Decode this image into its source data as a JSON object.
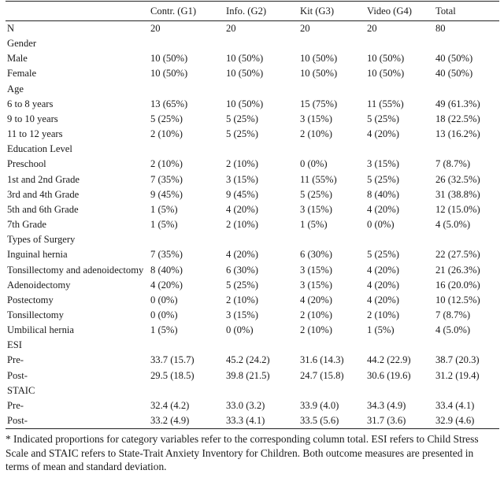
{
  "header": [
    "",
    "Contr. (G1)",
    "Info. (G2)",
    "Kit (G3)",
    "Video (G4)",
    "Total"
  ],
  "rows": [
    [
      "N",
      "20",
      "20",
      "20",
      "20",
      "80"
    ],
    [
      "Gender",
      "",
      "",
      "",
      "",
      ""
    ],
    [
      "Male",
      "10 (50%)",
      "10 (50%)",
      "10 (50%)",
      "10 (50%)",
      "40 (50%)"
    ],
    [
      "Female",
      "10 (50%)",
      "10 (50%)",
      "10 (50%)",
      "10 (50%)",
      "40 (50%)"
    ],
    [
      "Age",
      "",
      "",
      "",
      "",
      ""
    ],
    [
      "6 to 8 years",
      "13 (65%)",
      "10 (50%)",
      "15 (75%)",
      "11 (55%)",
      "49 (61.3%)"
    ],
    [
      "9 to 10 years",
      "5 (25%)",
      "5 (25%)",
      "3 (15%)",
      "5 (25%)",
      "18 (22.5%)"
    ],
    [
      "11 to 12 years",
      "2 (10%)",
      "5 (25%)",
      "2 (10%)",
      "4 (20%)",
      "13 (16.2%)"
    ],
    [
      "Education Level",
      "",
      "",
      "",
      "",
      ""
    ],
    [
      "Preschool",
      "2 (10%)",
      "2 (10%)",
      "0 (0%)",
      "3 (15%)",
      "7 (8.7%)"
    ],
    [
      "1st and 2nd Grade",
      "7 (35%)",
      "3 (15%)",
      "11 (55%)",
      "5 (25%)",
      "26 (32.5%)"
    ],
    [
      "3rd and 4th Grade",
      "9 (45%)",
      "9 (45%)",
      "5 (25%)",
      "8 (40%)",
      "31 (38.8%)"
    ],
    [
      "5th and 6th Grade",
      "1 (5%)",
      "4 (20%)",
      "3 (15%)",
      "4 (20%)",
      "12 (15.0%)"
    ],
    [
      "7th Grade",
      "1 (5%)",
      "2 (10%)",
      "1 (5%)",
      "0 (0%)",
      "4 (5.0%)"
    ],
    [
      "Types of Surgery",
      "",
      "",
      "",
      "",
      ""
    ],
    [
      "Inguinal hernia",
      "7 (35%)",
      "4 (20%)",
      "6 (30%)",
      "5 (25%)",
      "22 (27.5%)"
    ],
    [
      "Tonsillectomy and adenoidectomy",
      "8 (40%)",
      "6 (30%)",
      "3 (15%)",
      "4 (20%)",
      "21 (26.3%)"
    ],
    [
      "Adenoidectomy",
      "4 (20%)",
      "5 (25%)",
      "3 (15%)",
      "4 (20%)",
      "16 (20.0%)"
    ],
    [
      "Postectomy",
      "0 (0%)",
      "2 (10%)",
      "4 (20%)",
      "4 (20%)",
      "10 (12.5%)"
    ],
    [
      "Tonsillectomy",
      "0 (0%)",
      "3 (15%)",
      "2 (10%)",
      "2 (10%)",
      "7 (8.7%)"
    ],
    [
      "Umbilical hernia",
      "1 (5%)",
      "0 (0%)",
      "2 (10%)",
      "1 (5%)",
      "4 (5.0%)"
    ],
    [
      "ESI",
      "",
      "",
      "",
      "",
      ""
    ],
    [
      "Pre-",
      "33.7 (15.7)",
      "45.2 (24.2)",
      "31.6 (14.3)",
      "44.2 (22.9)",
      "38.7 (20.3)"
    ],
    [
      "Post-",
      "29.5 (18.5)",
      "39.8 (21.5)",
      "24.7 (15.8)",
      "30.6 (19.6)",
      "31.2 (19.4)"
    ],
    [
      "STAIC",
      "",
      "",
      "",
      "",
      ""
    ],
    [
      "Pre-",
      "32.4 (4.2)",
      "33.0 (3.2)",
      "33.9 (4.0)",
      "34.3 (4.9)",
      "33.4 (4.1)"
    ],
    [
      "Post-",
      "33.2 (4.9)",
      "33.3 (4.1)",
      "33.5 (5.6)",
      "31.7 (3.6)",
      "32.9 (4.6)"
    ]
  ],
  "footnote": "* Indicated proportions for category variables refer to the corresponding column total. ESI refers to Child Stress Scale and STAIC refers to State-Trait Anxiety Inventory for Children. Both outcome measures are presented in terms of mean and standard deviation."
}
